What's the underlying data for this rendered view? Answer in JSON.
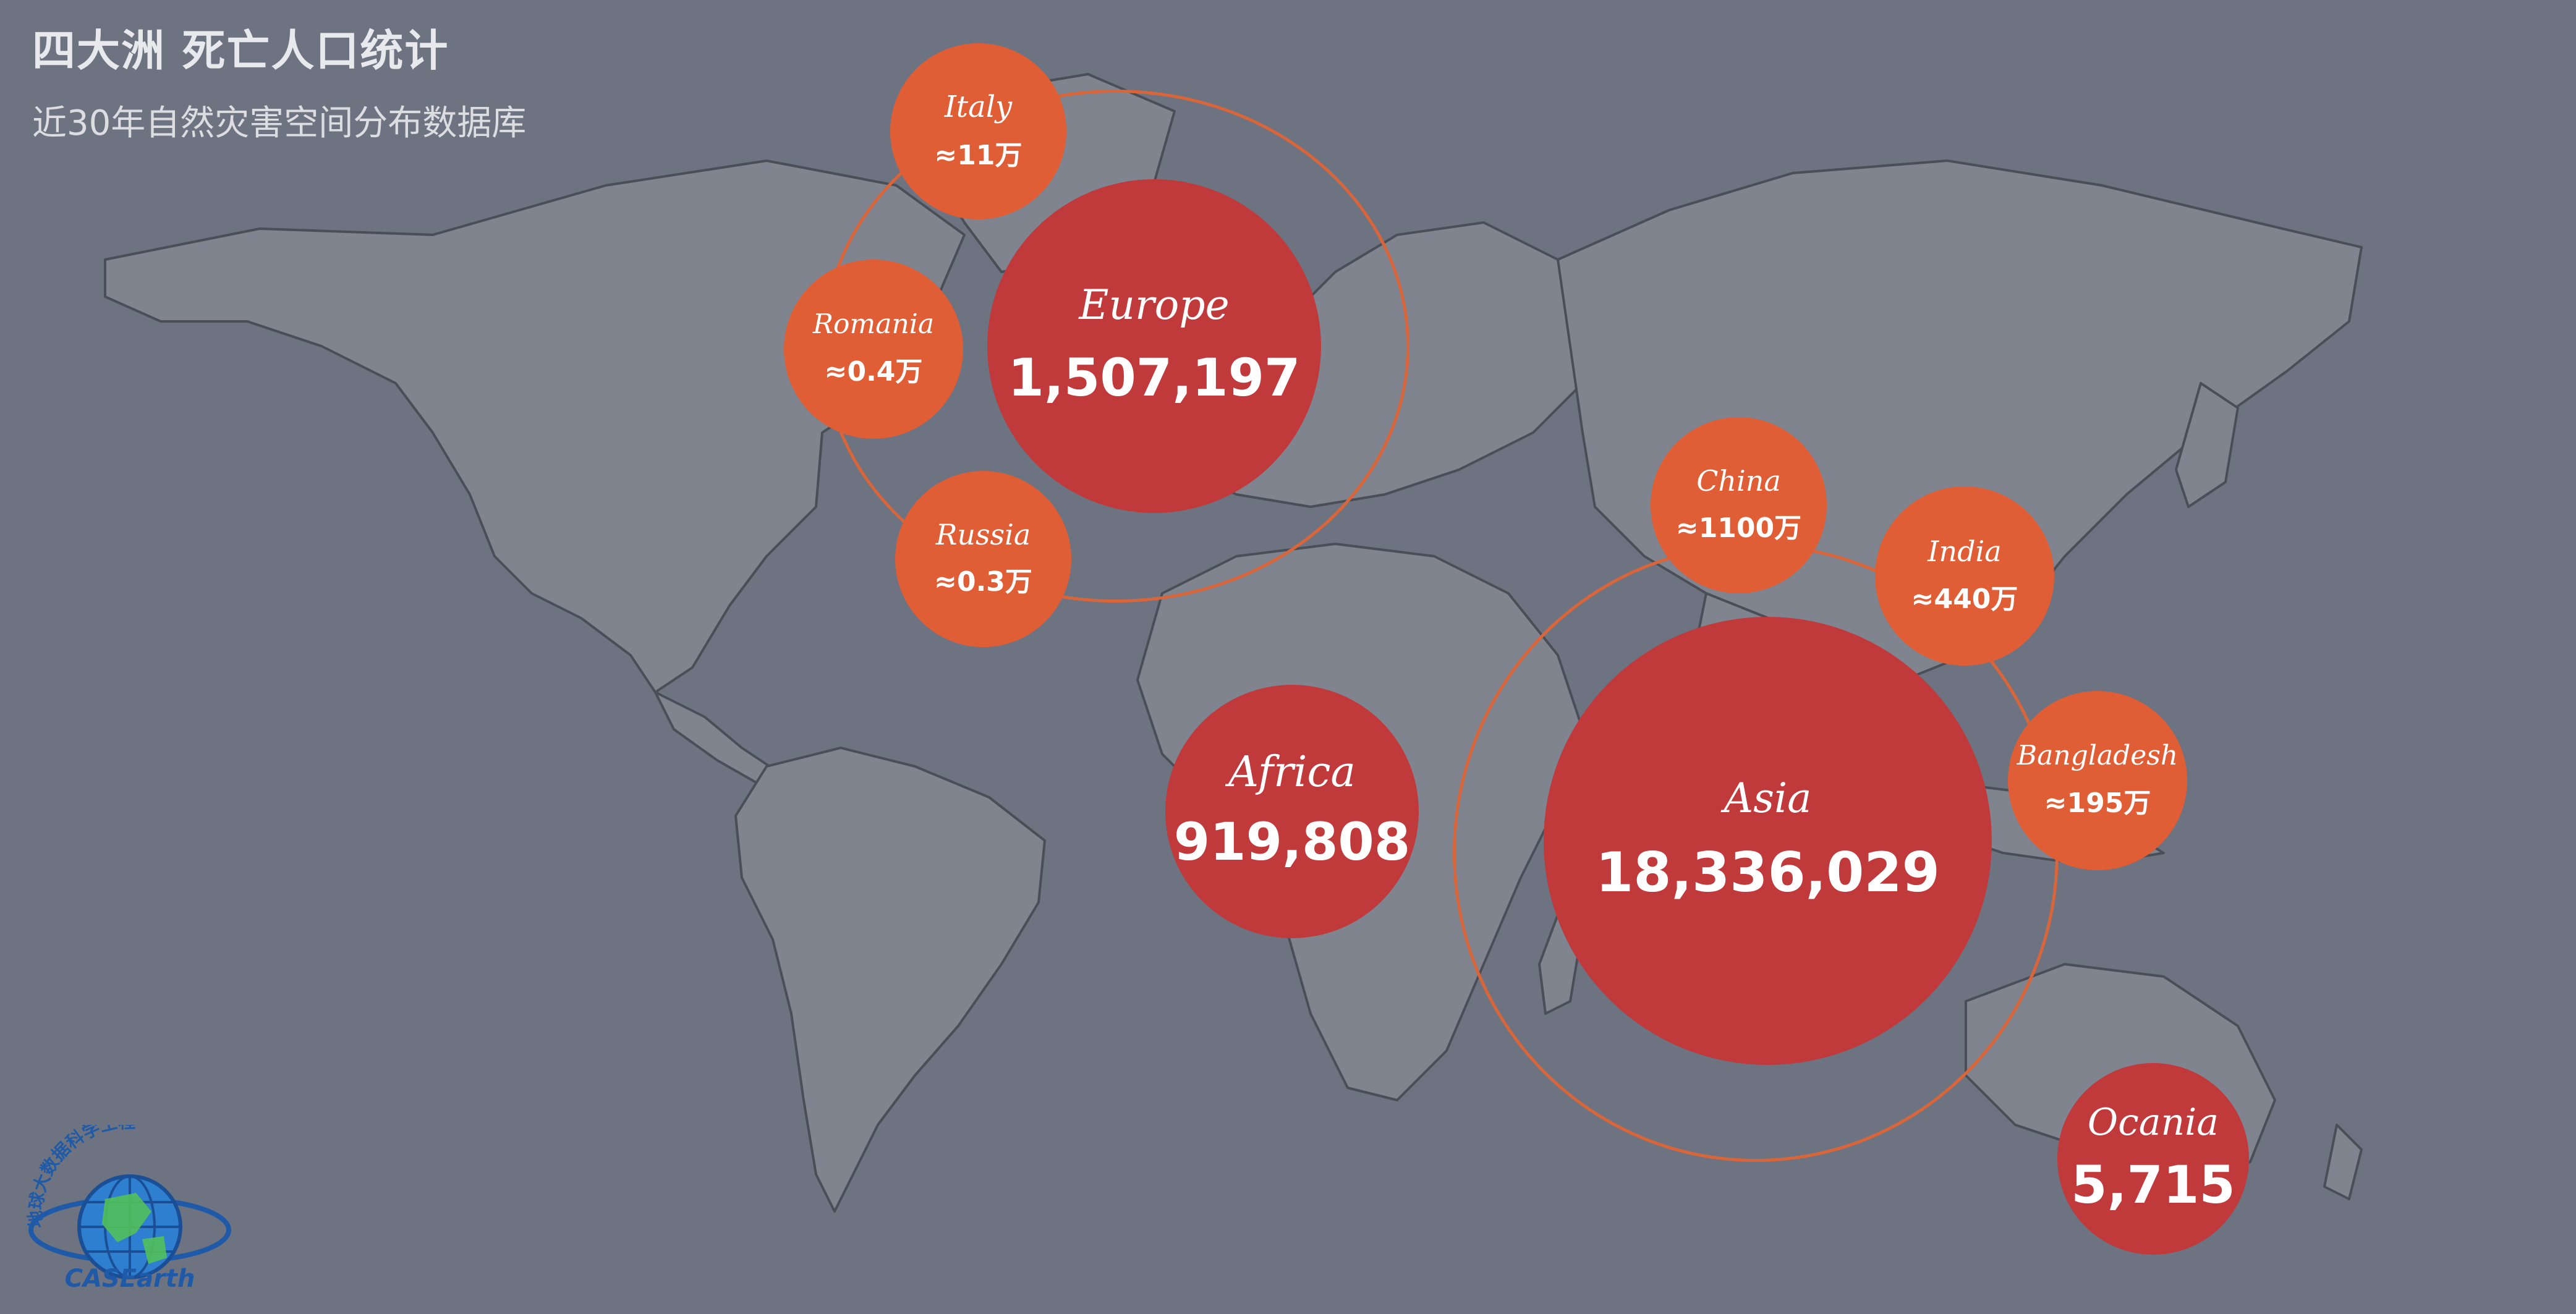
{
  "header": {
    "title": "四大洲 死亡人口统计",
    "subtitle": "近30年自然灾害空间分布数据库"
  },
  "continents": [
    {
      "name": "Europe",
      "value": "1,507,197"
    },
    {
      "name": "Africa",
      "value": "919,808"
    },
    {
      "name": "Asia",
      "value": "18,336,029"
    },
    {
      "name": "Ocania",
      "value": "5,715"
    }
  ],
  "countries": [
    {
      "name": "Italy",
      "value": "≈11万"
    },
    {
      "name": "Romania",
      "value": "≈0.4万"
    },
    {
      "name": "Russia",
      "value": "≈0.3万"
    },
    {
      "name": "China",
      "value": "≈1100万"
    },
    {
      "name": "India",
      "value": "≈440万"
    },
    {
      "name": "Bangladesh",
      "value": "≈195万"
    }
  ],
  "logo": {
    "text_arc": "地球大数据科学工程",
    "text_bottom": "CASEarth"
  },
  "colors": {
    "background": "#6d7380",
    "land": "#7f848f",
    "border": "#4a4e57",
    "continent_bubble": "#c0393b",
    "country_bubble": "#e05e35",
    "ring": "#d9663a"
  }
}
